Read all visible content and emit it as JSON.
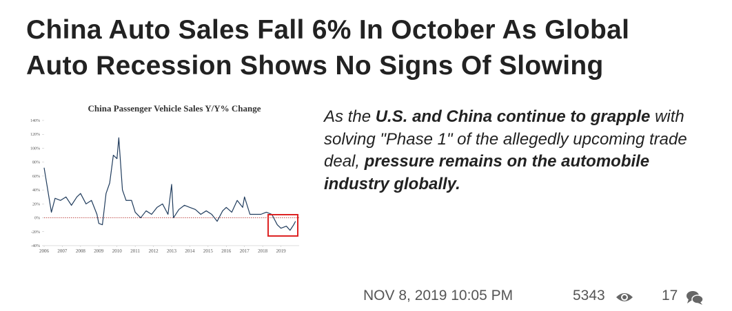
{
  "article": {
    "title_lines": [
      "China Auto Sales Fall 6% In October As Global",
      "Auto Recession Shows No Signs Of Slowing"
    ],
    "summary": [
      {
        "text": "As the ",
        "bold": false
      },
      {
        "text": "U.S. and China continue to grapple",
        "bold": true
      },
      {
        "text": " with solving \"Phase 1\" of the allegedly upcoming trade deal, ",
        "bold": false
      },
      {
        "text": "pressure remains on the automobile industry globally.",
        "bold": true
      }
    ],
    "date": "NOV 8, 2019 10:05 PM",
    "views": 5343,
    "comments": 17
  },
  "chart_data": {
    "type": "line",
    "title": "China Passenger Vehicle Sales Y/Y% Change",
    "color": "#1f3b5c",
    "x": [
      2006.0,
      2006.2,
      2006.4,
      2006.6,
      2006.9,
      2007.2,
      2007.5,
      2007.8,
      2008.0,
      2008.3,
      2008.6,
      2008.9,
      2009.0,
      2009.2,
      2009.4,
      2009.6,
      2009.8,
      2010.0,
      2010.1,
      2010.3,
      2010.5,
      2010.8,
      2011.0,
      2011.3,
      2011.6,
      2011.9,
      2012.2,
      2012.5,
      2012.8,
      2013.0,
      2013.1,
      2013.4,
      2013.7,
      2014.0,
      2014.3,
      2014.6,
      2014.9,
      2015.2,
      2015.5,
      2015.8,
      2016.0,
      2016.3,
      2016.6,
      2016.9,
      2017.0,
      2017.3,
      2017.6,
      2017.9,
      2018.2,
      2018.5,
      2018.8,
      2019.0,
      2019.3,
      2019.5,
      2019.7,
      2019.8
    ],
    "values": [
      72,
      40,
      8,
      28,
      25,
      30,
      18,
      30,
      35,
      20,
      25,
      5,
      -8,
      -10,
      35,
      50,
      90,
      85,
      115,
      40,
      25,
      25,
      8,
      0,
      10,
      5,
      15,
      20,
      5,
      48,
      0,
      12,
      18,
      15,
      12,
      5,
      10,
      5,
      -5,
      10,
      15,
      8,
      25,
      15,
      30,
      5,
      5,
      5,
      8,
      5,
      -10,
      -15,
      -12,
      -18,
      -10,
      -5
    ],
    "xlim": [
      2006,
      2020
    ],
    "xticks": [
      2006,
      2007,
      2008,
      2009,
      2010,
      2011,
      2012,
      2013,
      2014,
      2015,
      2016,
      2017,
      2018,
      2019
    ],
    "ylim": [
      -40,
      140
    ],
    "yticks": [
      {
        "value": -40,
        "label": "-40%"
      },
      {
        "value": -20,
        "label": "-20%"
      },
      {
        "value": 0,
        "label": "0%"
      },
      {
        "value": 20,
        "label": "20%"
      },
      {
        "value": 40,
        "label": "40%"
      },
      {
        "value": 60,
        "label": "60%"
      },
      {
        "value": 80,
        "label": "80%"
      },
      {
        "value": 100,
        "label": "100%"
      },
      {
        "value": 120,
        "label": "120%"
      },
      {
        "value": 140,
        "label": "140%"
      }
    ],
    "reference_line": {
      "value": 0,
      "color": "#c0504d"
    }
  }
}
